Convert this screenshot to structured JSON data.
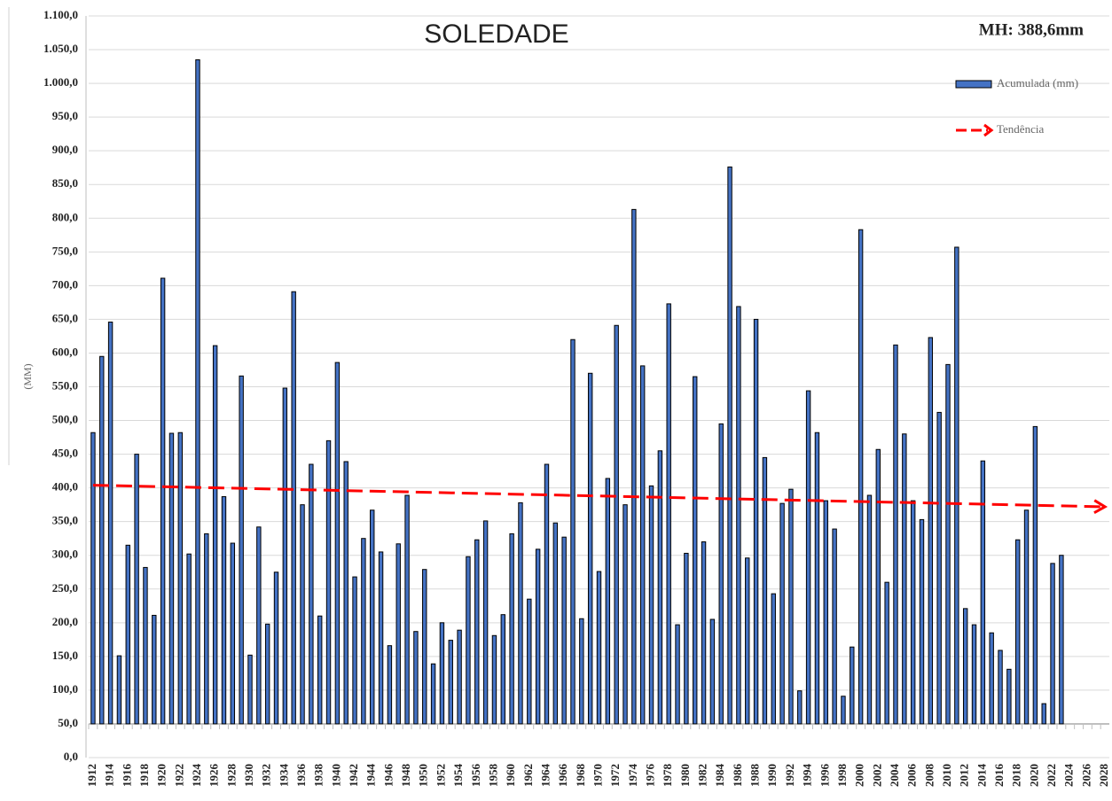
{
  "chart_data": {
    "type": "bar",
    "title": "SOLEDADE",
    "annotation": "MH: 388,6mm",
    "y_label": "(MM)",
    "categories": [
      1912,
      null,
      1914,
      null,
      1916,
      null,
      1918,
      null,
      1920,
      null,
      1922,
      null,
      1924,
      null,
      1926,
      null,
      1928,
      null,
      1930,
      null,
      1932,
      null,
      1934,
      null,
      1936,
      null,
      1938,
      null,
      1940,
      null,
      1942,
      null,
      1944,
      null,
      1946,
      null,
      1948,
      null,
      1950,
      null,
      1952,
      null,
      1954,
      null,
      1956,
      null,
      1958,
      null,
      1960,
      null,
      1962,
      null,
      1964,
      null,
      1966,
      null,
      1968,
      null,
      1970,
      null,
      1972,
      null,
      1974,
      null,
      1976,
      null,
      1978,
      null,
      1980,
      null,
      1982,
      null,
      1984,
      null,
      1986,
      null,
      1988,
      null,
      1990,
      null,
      1992,
      null,
      1994,
      null,
      1996,
      null,
      1998,
      null,
      2000,
      null,
      2002,
      null,
      2004,
      null,
      2006,
      null,
      2008,
      null,
      2010,
      null,
      2012,
      null,
      2014,
      null,
      2016,
      null,
      2018,
      null,
      2020,
      null,
      2022,
      null,
      2024,
      null,
      2026,
      null,
      2028
    ],
    "series": [
      {
        "name": "Acumulada (mm)",
        "color": "#4472c4",
        "values": [
          482,
          595,
          646,
          151,
          315,
          450,
          282,
          211,
          711,
          481,
          482,
          302,
          1035,
          332,
          611,
          387,
          318,
          566,
          152,
          342,
          198,
          275,
          548,
          691,
          375,
          435,
          210,
          470,
          586,
          439,
          268,
          325,
          367,
          305,
          166,
          317,
          389,
          187,
          279,
          139,
          200,
          174,
          189,
          298,
          323,
          351,
          181,
          212,
          332,
          378,
          235,
          309,
          435,
          348,
          327,
          620,
          206,
          570,
          276,
          414,
          641,
          375,
          813,
          581,
          403,
          455,
          673,
          197,
          303,
          565,
          320,
          205,
          495,
          876,
          669,
          296,
          650,
          445,
          243,
          377,
          398,
          99,
          544,
          482,
          381,
          339,
          91,
          164,
          783,
          389,
          457,
          260,
          612,
          480,
          381,
          353,
          623,
          512,
          583,
          757,
          221,
          197,
          440,
          185,
          159,
          131,
          323,
          367,
          491,
          80,
          288,
          300,
          null,
          null,
          null,
          null,
          null
        ]
      },
      {
        "name": "Tendência",
        "type": "line",
        "color": "#ff0000",
        "x": [
          1912,
          2028
        ],
        "values": [
          404,
          372
        ]
      }
    ],
    "x_axis_crosses": 50,
    "ylim": [
      0,
      1100
    ],
    "yticks": [
      {
        "value": 0,
        "label": "0,0"
      },
      {
        "value": 50,
        "label": "50,0"
      },
      {
        "value": 100,
        "label": "100,0"
      },
      {
        "value": 150,
        "label": "150,0"
      },
      {
        "value": 200,
        "label": "200,0"
      },
      {
        "value": 250,
        "label": "250,0"
      },
      {
        "value": 300,
        "label": "300,0"
      },
      {
        "value": 350,
        "label": "350,0"
      },
      {
        "value": 400,
        "label": "400,0"
      },
      {
        "value": 450,
        "label": "450,0"
      },
      {
        "value": 500,
        "label": "500,0"
      },
      {
        "value": 550,
        "label": "550,0"
      },
      {
        "value": 600,
        "label": "600,0"
      },
      {
        "value": 650,
        "label": "650,0"
      },
      {
        "value": 700,
        "label": "700,0"
      },
      {
        "value": 750,
        "label": "750,0"
      },
      {
        "value": 800,
        "label": "800,0"
      },
      {
        "value": 850,
        "label": "850,0"
      },
      {
        "value": 900,
        "label": "900,0"
      },
      {
        "value": 950,
        "label": "950,0"
      },
      {
        "value": 1000,
        "label": "1.000,0"
      },
      {
        "value": 1050,
        "label": "1.050,0"
      },
      {
        "value": 1100,
        "label": "1.100,0"
      }
    ],
    "grid": true,
    "legend": "top-right"
  }
}
